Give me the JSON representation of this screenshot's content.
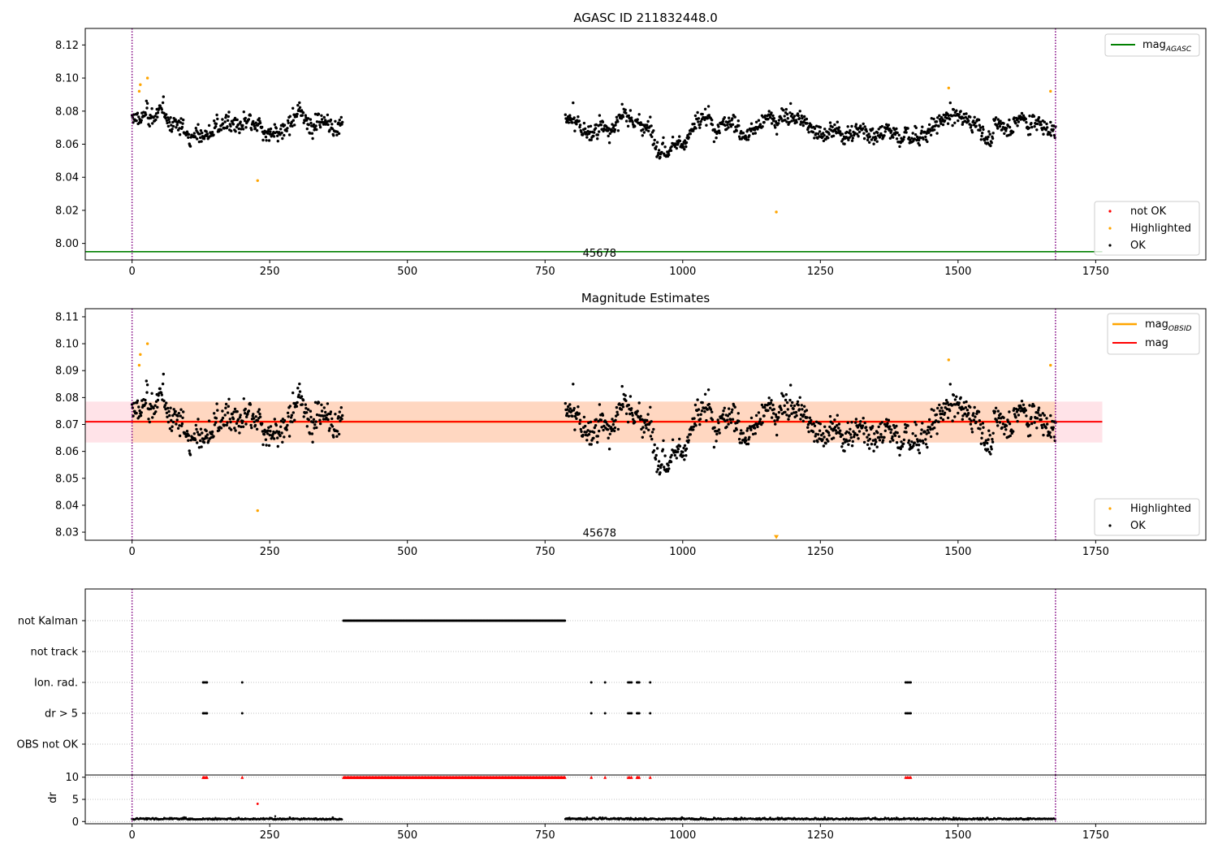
{
  "chart_data": [
    {
      "panel": "agasc",
      "type": "scatter",
      "title": "AGASC ID 211832448.0",
      "xlim": [
        -85,
        1950
      ],
      "ylim": [
        7.99,
        8.13
      ],
      "xticks": [
        0,
        250,
        500,
        750,
        1000,
        1250,
        1500,
        1750
      ],
      "yticks": [
        8.0,
        8.02,
        8.04,
        8.06,
        8.08,
        8.1,
        8.12
      ],
      "ytick_labels": [
        "8.00",
        "8.02",
        "8.04",
        "8.06",
        "8.08",
        "8.10",
        "8.12"
      ],
      "obs_start": 0,
      "obs_end": 1677,
      "obsid_text": "45678",
      "obsid_pos": [
        845,
        7.994
      ],
      "mag_agasc": 7.995,
      "mag_agasc_xrange": [
        -85,
        1762
      ],
      "line_legend": {
        "base": "mag",
        "sub": "AGASC",
        "placement": "upper right"
      },
      "marker_legend": {
        "items": [
          "not OK",
          "Highlighted",
          "OK"
        ],
        "placement": "lower right"
      },
      "mean": 8.0705,
      "segments": [
        [
          0,
          382
        ],
        [
          787,
          1677
        ]
      ],
      "highlighted": [
        [
          13,
          8.092
        ],
        [
          15,
          8.096
        ],
        [
          28,
          8.1
        ],
        [
          228,
          8.038
        ],
        [
          1170,
          8.019
        ],
        [
          1483,
          8.094
        ],
        [
          1668,
          8.092
        ]
      ],
      "colors": {
        "ok": "#000000",
        "highlighted": "#ffa500",
        "not_ok": "#ff0000",
        "agasc_line": "#008000",
        "obs_lines": "#800080"
      }
    },
    {
      "panel": "estimates",
      "type": "scatter",
      "title": "Magnitude Estimates",
      "xlim": [
        -85,
        1950
      ],
      "ylim": [
        8.027,
        8.113
      ],
      "xticks": [
        0,
        250,
        500,
        750,
        1000,
        1250,
        1500,
        1750
      ],
      "yticks": [
        8.03,
        8.04,
        8.05,
        8.06,
        8.07,
        8.08,
        8.09,
        8.1,
        8.11
      ],
      "ytick_labels": [
        "8.03",
        "8.04",
        "8.05",
        "8.06",
        "8.07",
        "8.08",
        "8.09",
        "8.10",
        "8.11"
      ],
      "obs_start": 0,
      "obs_end": 1677,
      "obsid_text": "45678",
      "obsid_pos": [
        845,
        8.0295
      ],
      "mag": 8.071,
      "mag_band": [
        8.0633,
        8.0785
      ],
      "mag_band_xrange": [
        -85,
        1762
      ],
      "mag_obsid_band": [
        8.0633,
        8.0785
      ],
      "mag_obsid_xrange": [
        0,
        1677
      ],
      "line_legend": {
        "items": [
          {
            "base": "mag",
            "sub": "OBSID"
          },
          {
            "base": "mag",
            "sub": ""
          }
        ],
        "placement": "upper right"
      },
      "marker_legend": {
        "items": [
          "Highlighted",
          "OK"
        ],
        "placement": "lower right"
      },
      "mean": 8.0705,
      "segments": [
        [
          0,
          382
        ],
        [
          787,
          1677
        ]
      ],
      "highlighted": [
        [
          13,
          8.092
        ],
        [
          15,
          8.096
        ],
        [
          28,
          8.1
        ],
        [
          228,
          8.038
        ],
        [
          1483,
          8.094
        ],
        [
          1668,
          8.092
        ]
      ],
      "clipped_low_marker": [
        1170,
        8.028
      ],
      "colors": {
        "mag_line": "#ff0000",
        "mag_band": "#ffc0cb",
        "mag_obsid": "#ffa500",
        "mag_obsid_band": "#ffd3b4"
      }
    },
    {
      "panel": "flags",
      "type": "scatter",
      "xlim": [
        -85,
        1950
      ],
      "categories": [
        "not Kalman",
        "not track",
        "Ion. rad.",
        "dr > 5",
        "OBS not OK"
      ],
      "not_kalman_range": [
        384,
        787
      ],
      "not_track": [],
      "ion_rad": [
        129,
        131,
        134,
        136,
        200,
        834,
        859,
        901,
        904,
        907,
        917,
        919,
        921,
        941,
        1405,
        1408,
        1411,
        1414
      ],
      "dr_gt_5": [
        129,
        131,
        134,
        136,
        200,
        834,
        859,
        901,
        904,
        907,
        917,
        919,
        921,
        941,
        1405,
        1408,
        1411,
        1414
      ],
      "obs_not_ok": [],
      "obs_start": 0,
      "obs_end": 1677
    },
    {
      "panel": "dr",
      "type": "scatter",
      "ylabel": "dr",
      "xlim": [
        -85,
        1950
      ],
      "ylim": [
        -0.5,
        10.5
      ],
      "xticks": [
        0,
        250,
        500,
        750,
        1000,
        1250,
        1500,
        1750
      ],
      "yticks": [
        0,
        5,
        10
      ],
      "ytick_labels": [
        "0",
        "5",
        "10"
      ],
      "clipped_value": 10,
      "clipped_range": [
        384,
        787
      ],
      "clipped_points": [
        129,
        131,
        134,
        136,
        200,
        834,
        859,
        901,
        904,
        907,
        917,
        919,
        921,
        941,
        1405,
        1408,
        1411,
        1414
      ],
      "outlier": [
        228,
        4.0
      ],
      "small_point": [
        260,
        1.2
      ],
      "segments": [
        [
          0,
          382
        ],
        [
          787,
          1677
        ]
      ],
      "obs_start": 0,
      "obs_end": 1677,
      "colors": {
        "dr_points": "#000000",
        "clipped": "#ff0000"
      }
    }
  ]
}
